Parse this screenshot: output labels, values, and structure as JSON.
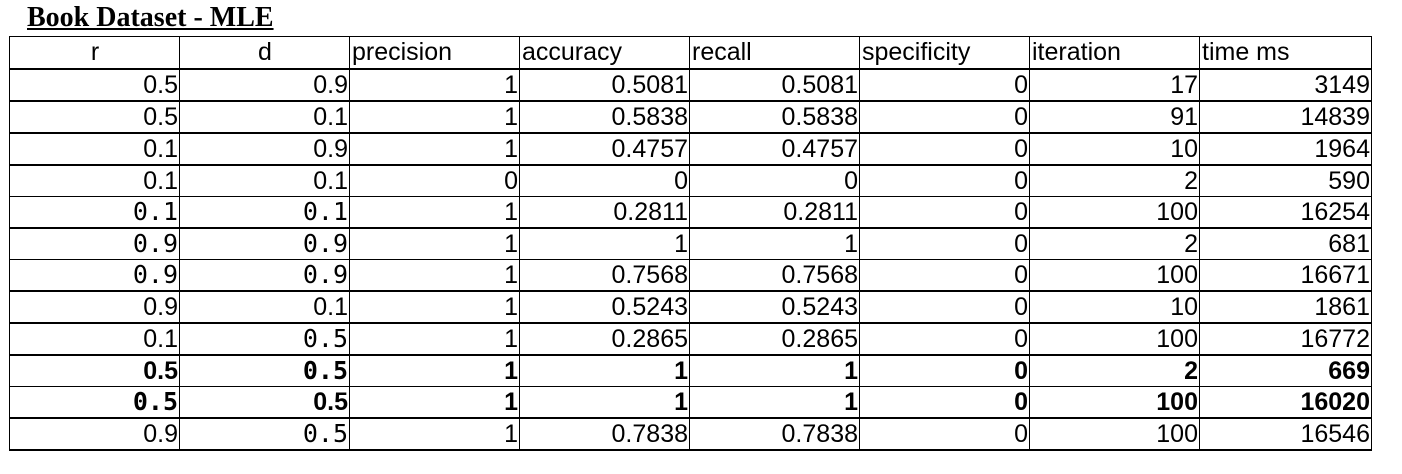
{
  "title": "Book Dataset - MLE",
  "table": {
    "headers": [
      "r",
      "d",
      "precision",
      "accuracy",
      "recall",
      "specificity",
      "iteration",
      "time ms"
    ],
    "rows": [
      [
        "0.5",
        "0.9",
        "1",
        "0.5081",
        "0.5081",
        "0",
        "17",
        "3149"
      ],
      [
        "0.5",
        "0.1",
        "1",
        "0.5838",
        "0.5838",
        "0",
        "91",
        "14839"
      ],
      [
        "0.1",
        "0.9",
        "1",
        "0.4757",
        "0.4757",
        "0",
        "10",
        "1964"
      ],
      [
        "0.1",
        "0.1",
        "0",
        "0",
        "0",
        "0",
        "2",
        "590"
      ],
      [
        "0.1",
        "0.1",
        "1",
        "0.2811",
        "0.2811",
        "0",
        "100",
        "16254"
      ],
      [
        "0.9",
        "0.9",
        "1",
        "1",
        "1",
        "0",
        "2",
        "681"
      ],
      [
        "0.9",
        "0.9",
        "1",
        "0.7568",
        "0.7568",
        "0",
        "100",
        "16671"
      ],
      [
        "0.9",
        "0.1",
        "1",
        "0.5243",
        "0.5243",
        "0",
        "10",
        "1861"
      ],
      [
        "0.1",
        "0.5",
        "1",
        "0.2865",
        "0.2865",
        "0",
        "100",
        "16772"
      ],
      [
        "0.5",
        "0.5",
        "1",
        "1",
        "1",
        "0",
        "2",
        "669"
      ],
      [
        "0.5",
        "0.5",
        "1",
        "1",
        "1",
        "0",
        "100",
        "16020"
      ],
      [
        "0.9",
        "0.5",
        "1",
        "0.7838",
        "0.7838",
        "0",
        "100",
        "16546"
      ]
    ]
  }
}
